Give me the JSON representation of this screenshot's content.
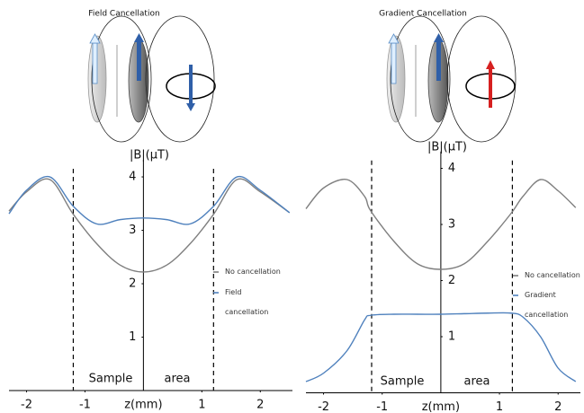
{
  "chart_data": [
    {
      "type": "line",
      "title": "Field Cancellation",
      "y_label": "|B|(μT)",
      "x_label": "z(mm)",
      "x": [
        -2.3,
        -2,
        -1.6,
        -1.2,
        -0.8,
        -0.4,
        0,
        0.4,
        0.8,
        1.2,
        1.6,
        2,
        2.5
      ],
      "series": [
        {
          "name": "No cancellation",
          "color": "#7f7f7f",
          "values": [
            3.36,
            3.72,
            3.95,
            3.3,
            2.75,
            2.35,
            2.22,
            2.35,
            2.75,
            3.3,
            3.95,
            3.72,
            3.33
          ]
        },
        {
          "name": "Field cancellation",
          "color": "#4f81bd",
          "values": [
            3.31,
            3.75,
            4.0,
            3.45,
            3.12,
            3.2,
            3.23,
            3.2,
            3.12,
            3.45,
            4.0,
            3.75,
            3.33
          ]
        }
      ],
      "xlim": [
        -2.3,
        2.55
      ],
      "ylim": [
        0,
        4.32
      ],
      "xticks": [
        -2,
        -1,
        1,
        2
      ],
      "yticks": [
        1,
        2,
        3,
        4
      ],
      "dashed_lines": [
        -1.2,
        1.2
      ],
      "annotations": [
        "Sample",
        "area"
      ],
      "grid": false
    },
    {
      "type": "line",
      "title": "Gradient Cancellation",
      "y_label": "|B|(μT)",
      "x_label": "z(mm)",
      "x": [
        -2.3,
        -2,
        -1.6,
        -1.3,
        -1.2,
        -0.8,
        -0.4,
        0,
        0.4,
        0.8,
        1.2,
        1.4,
        1.7,
        2,
        2.3
      ],
      "series": [
        {
          "name": "No cancellation",
          "color": "#7f7f7f",
          "values": [
            3.28,
            3.65,
            3.8,
            3.5,
            3.25,
            2.7,
            2.3,
            2.2,
            2.3,
            2.7,
            3.2,
            3.5,
            3.8,
            3.6,
            3.3
          ]
        },
        {
          "name": "Gradient cancellation",
          "color": "#4f81bd",
          "values": [
            0.2,
            0.35,
            0.75,
            1.3,
            1.38,
            1.4,
            1.4,
            1.4,
            1.41,
            1.42,
            1.42,
            1.35,
            1.0,
            0.44,
            0.2
          ]
        }
      ],
      "xlim": [
        -2.3,
        2.38
      ],
      "ylim": [
        0,
        4.3
      ],
      "xticks": [
        -2,
        -1,
        1,
        2
      ],
      "yticks": [
        1,
        2,
        3,
        4
      ],
      "dashed_lines": [
        -1.18,
        1.22
      ],
      "annotations": [
        "Sample",
        "area"
      ],
      "grid": false
    }
  ]
}
